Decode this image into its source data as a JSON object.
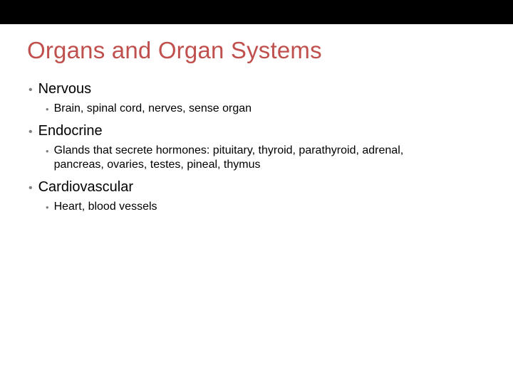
{
  "slide": {
    "title": "Organs and Organ Systems",
    "title_color": "#c0504d",
    "top_bar_color": "#000000",
    "background_color": "#ffffff",
    "bullet_color": "#7f7f7f",
    "text_color": "#000000",
    "title_fontsize": 33,
    "section_fontsize": 20,
    "sub_fontsize": 16,
    "sections": [
      {
        "label": "Nervous",
        "sub": "Brain, spinal cord, nerves, sense organ"
      },
      {
        "label": "Endocrine",
        "sub": "Glands that secrete hormones: pituitary, thyroid, parathyroid, adrenal, pancreas, ovaries, testes, pineal, thymus"
      },
      {
        "label": "Cardiovascular",
        "sub": "Heart, blood vessels"
      }
    ]
  }
}
